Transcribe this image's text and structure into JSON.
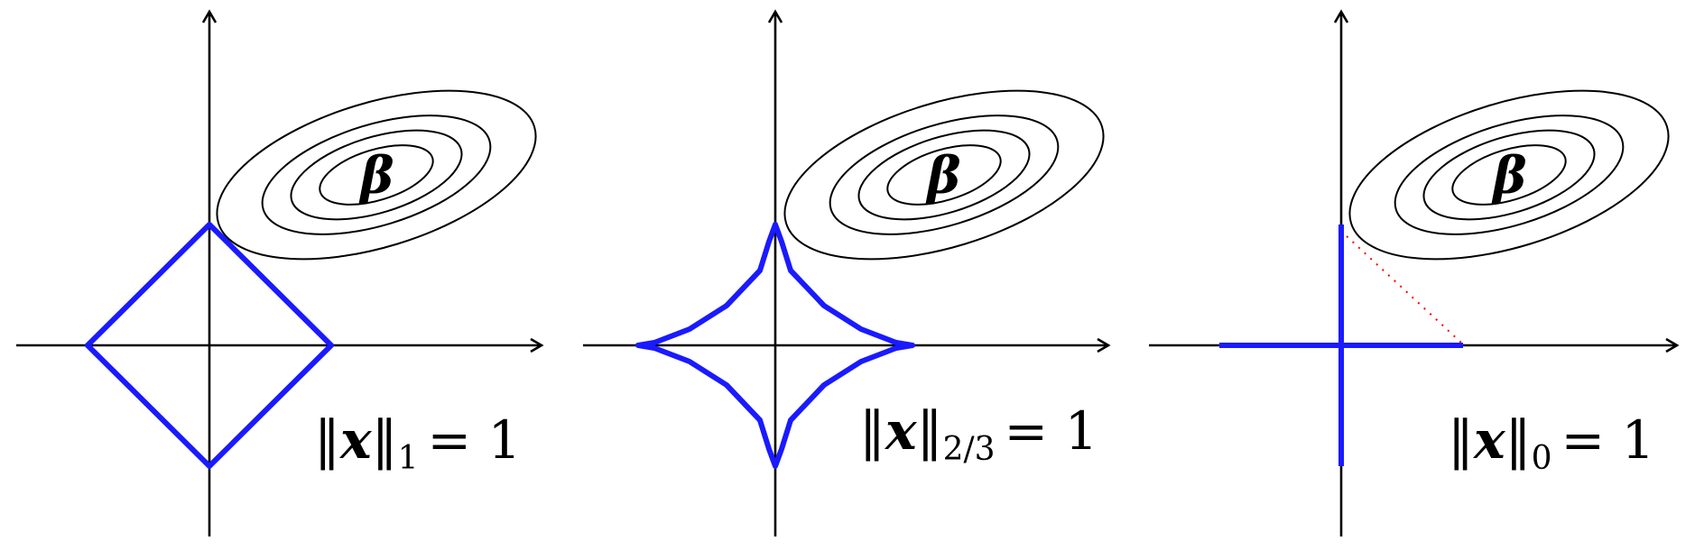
{
  "panels": [
    {
      "id": "l1",
      "beta": "β",
      "norm_var": "x",
      "subscript": "1",
      "rhs": "= 1",
      "shape": "diamond"
    },
    {
      "id": "l23",
      "beta": "β",
      "norm_var": "x",
      "subscript": "2/3",
      "rhs": "= 1",
      "shape": "astroid"
    },
    {
      "id": "l0",
      "beta": "β",
      "norm_var": "x",
      "subscript": "0",
      "rhs": "= 1",
      "shape": "cross"
    }
  ],
  "colors": {
    "ball": "#1a1aff",
    "contours": "#000000",
    "axes": "#000000",
    "dotted": "#ff0000"
  },
  "icons": [
    "arrowhead-icon"
  ]
}
